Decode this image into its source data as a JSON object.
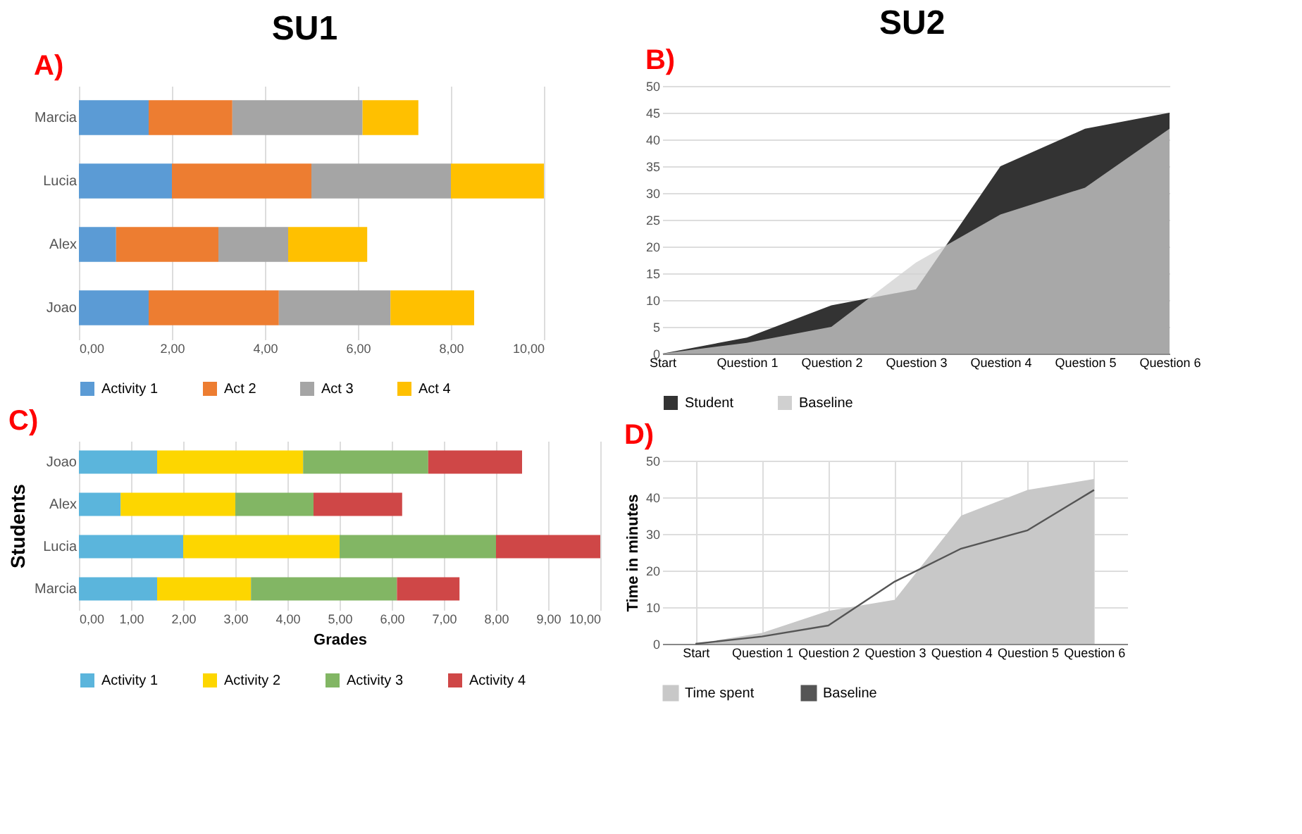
{
  "chart_data": [
    {
      "type": "bar",
      "title": "A)",
      "annotations": [
        "SU1"
      ],
      "orientation": "horizontal",
      "stacked": true,
      "categories": [
        "Marcia",
        "Lucia",
        "Alex",
        "Joao"
      ],
      "series": [
        {
          "name": "Activity 1",
          "color": "#5b9bd5",
          "values": [
            1.5,
            2.0,
            0.8,
            1.5
          ]
        },
        {
          "name": "Act 2",
          "color": "#ed7d31",
          "values": [
            1.8,
            3.0,
            2.2,
            2.8
          ]
        },
        {
          "name": "Act 3",
          "color": "#a5a5a5",
          "values": [
            2.8,
            3.0,
            1.5,
            2.4
          ]
        },
        {
          "name": "Act 4",
          "color": "#ffc000",
          "values": [
            1.2,
            2.0,
            1.7,
            1.8
          ]
        }
      ],
      "xlim": [
        0,
        10
      ],
      "xticks": [
        {
          "value": 0,
          "label": "0,00"
        },
        {
          "value": 2,
          "label": "2,00"
        },
        {
          "value": 4,
          "label": "4,00"
        },
        {
          "value": 6,
          "label": "6,00"
        },
        {
          "value": 8,
          "label": "8,00"
        },
        {
          "value": 10,
          "label": "10,00"
        }
      ],
      "grid": "x",
      "legend": "bottom"
    },
    {
      "type": "area",
      "title": "B)",
      "annotations": [
        "SU2"
      ],
      "categories": [
        "Start",
        "Question 1",
        "Question 2",
        "Question 3",
        "Question 4",
        "Question 5",
        "Question 6"
      ],
      "series": [
        {
          "name": "Student",
          "color": "#333333",
          "values": [
            0,
            3,
            9,
            12,
            35,
            42,
            45
          ]
        },
        {
          "name": "Baseline",
          "color": "#d0d0d0",
          "values": [
            0,
            2,
            5,
            17,
            26,
            31,
            42
          ]
        }
      ],
      "ylim": [
        0,
        50
      ],
      "yticks": [
        0,
        5,
        10,
        15,
        20,
        25,
        30,
        35,
        40,
        45,
        50
      ],
      "grid": "y",
      "legend": "bottom"
    },
    {
      "type": "bar",
      "title": "C)",
      "orientation": "horizontal",
      "stacked": true,
      "xlabel": "Grades",
      "ylabel": "Students",
      "categories": [
        "Joao",
        "Alex",
        "Lucia",
        "Marcia"
      ],
      "series": [
        {
          "name": "Activity 1",
          "color": "#5bb5dc",
          "values": [
            1.5,
            0.8,
            2.0,
            1.5
          ]
        },
        {
          "name": "Activity 2",
          "color": "#fdd600",
          "values": [
            2.8,
            2.2,
            3.0,
            1.8
          ]
        },
        {
          "name": "Activity 3",
          "color": "#82b664",
          "values": [
            2.4,
            1.5,
            3.0,
            2.8
          ]
        },
        {
          "name": "Activity 4",
          "color": "#cf4747",
          "values": [
            1.8,
            1.7,
            2.0,
            1.2
          ]
        }
      ],
      "xlim": [
        0,
        10
      ],
      "xticks": [
        {
          "value": 0,
          "label": "0,00"
        },
        {
          "value": 1,
          "label": "1,00"
        },
        {
          "value": 2,
          "label": "2,00"
        },
        {
          "value": 3,
          "label": "3,00"
        },
        {
          "value": 4,
          "label": "4,00"
        },
        {
          "value": 5,
          "label": "5,00"
        },
        {
          "value": 6,
          "label": "6,00"
        },
        {
          "value": 7,
          "label": "7,00"
        },
        {
          "value": 8,
          "label": "8,00"
        },
        {
          "value": 9,
          "label": "9,00"
        },
        {
          "value": 10,
          "label": "10,00"
        }
      ],
      "grid": "x",
      "legend": "bottom"
    },
    {
      "type": "area",
      "title": "D)",
      "ylabel": "Time in minutes",
      "categories": [
        "Start",
        "Question 1",
        "Question 2",
        "Question 3",
        "Question 4",
        "Question 5",
        "Question 6"
      ],
      "series": [
        {
          "name": "Time spent",
          "type": "area",
          "color": "#c8c8c8",
          "values": [
            0,
            3,
            9,
            12,
            35,
            42,
            45
          ]
        },
        {
          "name": "Baseline",
          "type": "line",
          "color": "#555555",
          "values": [
            0,
            2,
            5,
            17,
            26,
            31,
            42
          ]
        }
      ],
      "ylim": [
        0,
        50
      ],
      "yticks": [
        0,
        10,
        20,
        30,
        40,
        50
      ],
      "grid": true,
      "legend": "bottom"
    }
  ]
}
